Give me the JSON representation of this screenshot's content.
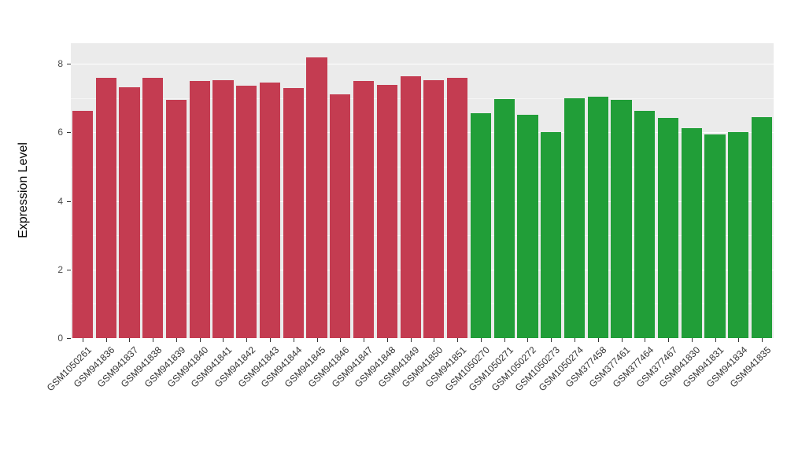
{
  "chart_data": {
    "type": "bar",
    "title": "",
    "xlabel": "",
    "ylabel": "Expression Level",
    "ylim": [
      0,
      8.6
    ],
    "yticks": [
      0,
      2,
      4,
      6,
      8
    ],
    "minor_gridlines": [
      1,
      3,
      5,
      7
    ],
    "grid": true,
    "legend": "none",
    "categories": [
      "GSM1050261",
      "GSM941836",
      "GSM941837",
      "GSM941838",
      "GSM941839",
      "GSM941840",
      "GSM941841",
      "GSM941842",
      "GSM941843",
      "GSM941844",
      "GSM941845",
      "GSM941846",
      "GSM941847",
      "GSM941848",
      "GSM941849",
      "GSM941850",
      "GSM941851",
      "GSM1050270",
      "GSM1050271",
      "GSM1050272",
      "GSM1050273",
      "GSM1050274",
      "GSM377458",
      "GSM377461",
      "GSM377464",
      "GSM377467",
      "GSM941830",
      "GSM941831",
      "GSM941834",
      "GSM941835"
    ],
    "values": [
      6.62,
      7.58,
      7.32,
      7.6,
      6.95,
      7.5,
      7.53,
      7.37,
      7.45,
      7.3,
      8.18,
      7.12,
      7.5,
      7.38,
      7.64,
      7.52,
      7.58,
      6.57,
      6.97,
      6.52,
      6.02,
      6.99,
      7.04,
      6.96,
      6.62,
      6.42,
      6.13,
      5.94,
      6.0,
      6.45
    ],
    "groups": [
      "red",
      "red",
      "red",
      "red",
      "red",
      "red",
      "red",
      "red",
      "red",
      "red",
      "red",
      "red",
      "red",
      "red",
      "red",
      "red",
      "red",
      "green",
      "green",
      "green",
      "green",
      "green",
      "green",
      "green",
      "green",
      "green",
      "green",
      "green",
      "green",
      "green"
    ],
    "group_colors": {
      "red": "#C43C51",
      "green": "#219E38"
    }
  },
  "style": {
    "panel_bg": "#EBEBEB",
    "grid_major": "#FFFFFF",
    "grid_minor": "#F5F5F5",
    "axis_text": "#4D4D4D",
    "tick_color": "#333333",
    "page_bg": "#FFFFFF"
  }
}
